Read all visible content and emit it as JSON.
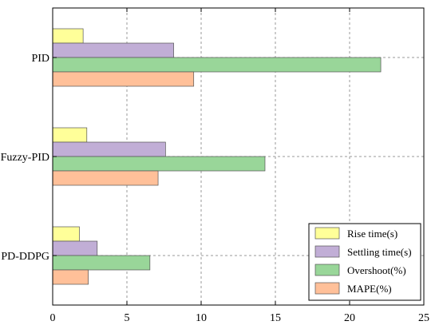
{
  "chart_data": {
    "type": "bar",
    "orientation": "horizontal",
    "categories": [
      "PID",
      "Fuzzy-PID",
      "PD-DDPG"
    ],
    "series": [
      {
        "name": "Rise time(s)",
        "color": "#ffff99",
        "values": [
          2.05,
          2.3,
          1.8
        ]
      },
      {
        "name": "Settling time(s)",
        "color": "#c1aed6",
        "values": [
          8.15,
          7.6,
          3.0
        ]
      },
      {
        "name": "Overshoot(%)",
        "color": "#99d699",
        "values": [
          22.1,
          14.3,
          6.55
        ]
      },
      {
        "name": "MAPE(%)",
        "color": "#ffc099",
        "values": [
          9.5,
          7.1,
          2.4
        ]
      }
    ],
    "xlim": [
      0,
      25
    ],
    "xticks": [
      "0",
      "5",
      "10",
      "15",
      "20",
      "25"
    ],
    "grid": true,
    "legend_position": "bottom-right"
  }
}
